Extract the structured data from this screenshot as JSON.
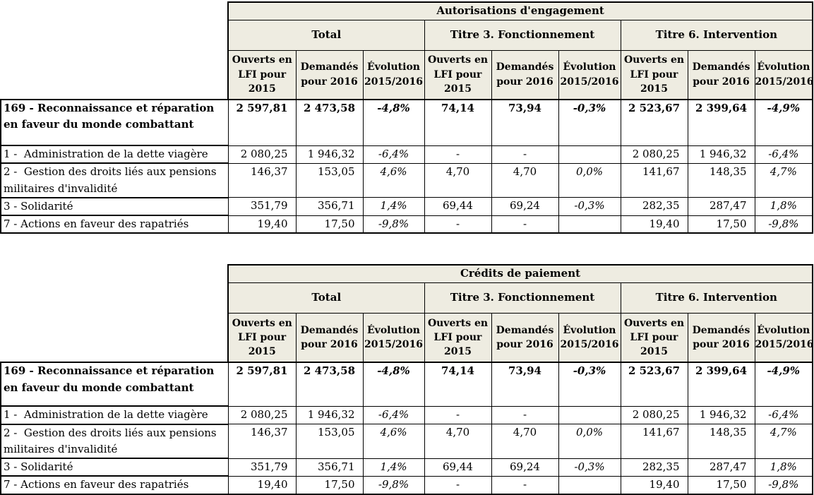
{
  "colors": {
    "header_background": "#EEECE1",
    "border": "#000000",
    "text": "#000000"
  },
  "tables": [
    {
      "title": "Autorisations d'engagement",
      "groups": [
        "Total",
        "Titre 3. Fonctionnement",
        "Titre 6. Intervention"
      ],
      "sub_headers": [
        "Ouverts en LFI pour 2015",
        "Demandés pour 2016",
        "Évolution 2015/2016"
      ],
      "rows": [
        {
          "label": "169 - Reconnaissance et réparation en faveur du monde combattant",
          "bold": true,
          "values": [
            "2 597,81",
            "2 473,58",
            "-4,8%",
            "74,14",
            "73,94",
            "-0,3%",
            "2 523,67",
            "2 399,64",
            "-4,9%"
          ]
        },
        {
          "label": "1 -  Administration de la dette viagère",
          "bold": false,
          "values": [
            "2 080,25",
            "1 946,32",
            "-6,4%",
            "-",
            "-",
            "",
            "2 080,25",
            "1 946,32",
            "-6,4%"
          ]
        },
        {
          "label": "2 -  Gestion des droits liés aux pensions militaires d'invalidité",
          "bold": false,
          "values": [
            "146,37",
            "153,05",
            "4,6%",
            "4,70",
            "4,70",
            "0,0%",
            "141,67",
            "148,35",
            "4,7%"
          ]
        },
        {
          "label": "3 - Solidarité",
          "bold": false,
          "values": [
            "351,79",
            "356,71",
            "1,4%",
            "69,44",
            "69,24",
            "-0,3%",
            "282,35",
            "287,47",
            "1,8%"
          ]
        },
        {
          "label": "7 - Actions en faveur des rapatriés",
          "bold": false,
          "values": [
            "19,40",
            "17,50",
            "-9,8%",
            "-",
            "-",
            "",
            "19,40",
            "17,50",
            "-9,8%"
          ]
        }
      ]
    },
    {
      "title": "Crédits de paiement",
      "groups": [
        "Total",
        "Titre 3. Fonctionnement",
        "Titre 6. Intervention"
      ],
      "sub_headers": [
        "Ouverts en LFI pour 2015",
        "Demandés pour 2016",
        "Évolution 2015/2016"
      ],
      "rows": [
        {
          "label": "169 - Reconnaissance et réparation en faveur du monde combattant",
          "bold": true,
          "values": [
            "2 597,81",
            "2 473,58",
            "-4,8%",
            "74,14",
            "73,94",
            "-0,3%",
            "2 523,67",
            "2 399,64",
            "-4,9%"
          ]
        },
        {
          "label": "1 -  Administration de la dette viagère",
          "bold": false,
          "values": [
            "2 080,25",
            "1 946,32",
            "-6,4%",
            "-",
            "-",
            "",
            "2 080,25",
            "1 946,32",
            "-6,4%"
          ]
        },
        {
          "label": "2 -  Gestion des droits liés aux pensions militaires d'invalidité",
          "bold": false,
          "values": [
            "146,37",
            "153,05",
            "4,6%",
            "4,70",
            "4,70",
            "0,0%",
            "141,67",
            "148,35",
            "4,7%"
          ]
        },
        {
          "label": "3 - Solidarité",
          "bold": false,
          "values": [
            "351,79",
            "356,71",
            "1,4%",
            "69,44",
            "69,24",
            "-0,3%",
            "282,35",
            "287,47",
            "1,8%"
          ]
        },
        {
          "label": "7 - Actions en faveur des rapatriés",
          "bold": false,
          "values": [
            "19,40",
            "17,50",
            "-9,8%",
            "-",
            "-",
            "",
            "19,40",
            "17,50",
            "-9,8%"
          ]
        }
      ]
    }
  ]
}
